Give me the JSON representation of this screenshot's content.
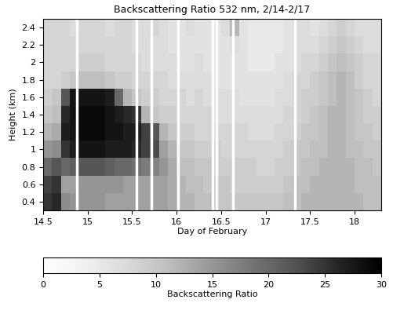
{
  "chart_data": {
    "type": "heatmap",
    "title": "Backscattering Ratio 532 nm, 2/14-2/17",
    "x_label": "Day of February",
    "y_label": "Height (km)",
    "color": "Greys",
    "x": [
      14.5,
      14.6,
      14.7,
      14.8,
      14.9,
      15.0,
      15.1,
      15.2,
      15.3,
      15.4,
      15.5,
      15.6,
      15.7,
      15.8,
      15.9,
      16.0,
      16.1,
      16.2,
      16.3,
      16.4,
      16.5,
      16.6,
      16.7,
      16.8,
      16.9,
      17.0,
      17.1,
      17.2,
      17.3,
      17.4,
      17.5,
      17.6,
      17.7,
      17.8,
      17.9,
      18.0,
      18.1,
      18.2,
      18.3
    ],
    "y": [
      0.3,
      0.5,
      0.7,
      0.9,
      1.1,
      1.3,
      1.5,
      1.7,
      1.9,
      2.1,
      2.3,
      2.5
    ],
    "cells": [
      [
        25,
        26,
        16,
        15,
        15,
        15,
        15,
        14,
        14,
        14,
        14,
        14,
        14,
        14,
        13,
        12,
        12,
        11,
        11,
        10,
        10,
        10,
        10,
        10,
        10,
        10,
        10,
        11,
        11,
        12,
        12,
        12,
        12,
        12,
        12,
        12,
        11,
        11
      ],
      [
        24,
        25,
        14,
        14,
        15,
        15,
        15,
        15,
        15,
        14,
        14,
        14,
        14,
        14,
        13,
        12,
        11,
        11,
        10,
        10,
        10,
        9,
        9,
        9,
        9,
        9,
        9,
        10,
        11,
        11,
        12,
        12,
        12,
        12,
        12,
        11,
        11,
        11
      ],
      [
        20,
        22,
        20,
        21,
        22,
        22,
        22,
        21,
        20,
        20,
        19,
        18,
        17,
        15,
        13,
        11,
        11,
        10,
        10,
        9,
        9,
        9,
        9,
        9,
        8,
        8,
        9,
        9,
        10,
        11,
        11,
        12,
        12,
        12,
        12,
        11,
        11,
        10
      ],
      [
        15,
        16,
        25,
        27,
        28,
        28,
        28,
        27,
        27,
        27,
        26,
        24,
        23,
        14,
        12,
        10,
        10,
        9,
        9,
        9,
        8,
        8,
        8,
        8,
        8,
        8,
        8,
        9,
        10,
        10,
        11,
        11,
        12,
        12,
        11,
        11,
        10,
        10
      ],
      [
        12,
        13,
        27,
        28,
        29,
        29,
        29,
        28,
        28,
        27,
        27,
        24,
        22,
        12,
        10,
        9,
        9,
        8,
        8,
        8,
        8,
        8,
        8,
        7,
        7,
        7,
        8,
        8,
        9,
        10,
        10,
        11,
        12,
        12,
        11,
        10,
        10,
        9
      ],
      [
        10,
        11,
        26,
        28,
        29,
        29,
        29,
        28,
        27,
        26,
        25,
        12,
        10,
        9,
        9,
        8,
        8,
        8,
        8,
        7,
        7,
        7,
        7,
        7,
        7,
        7,
        7,
        8,
        8,
        9,
        10,
        11,
        12,
        12,
        11,
        10,
        9,
        9
      ],
      [
        9,
        10,
        22,
        28,
        28,
        28,
        28,
        27,
        20,
        12,
        10,
        9,
        9,
        8,
        8,
        8,
        7,
        8,
        7,
        7,
        7,
        7,
        6,
        6,
        6,
        6,
        7,
        7,
        8,
        9,
        9,
        10,
        11,
        12,
        11,
        10,
        9,
        8
      ],
      [
        8,
        8,
        9,
        10,
        11,
        11,
        11,
        10,
        9,
        9,
        8,
        8,
        8,
        8,
        7,
        7,
        7,
        7,
        7,
        6,
        6,
        6,
        6,
        6,
        6,
        6,
        6,
        7,
        8,
        8,
        9,
        10,
        11,
        12,
        11,
        9,
        8,
        8
      ],
      [
        8,
        8,
        8,
        8,
        9,
        9,
        9,
        8,
        8,
        8,
        8,
        7,
        7,
        7,
        7,
        6,
        6,
        7,
        6,
        6,
        6,
        6,
        6,
        5,
        5,
        5,
        6,
        6,
        7,
        8,
        8,
        9,
        10,
        11,
        10,
        9,
        8,
        8
      ],
      [
        8,
        8,
        8,
        8,
        8,
        8,
        8,
        8,
        8,
        8,
        7,
        7,
        7,
        7,
        6,
        6,
        6,
        6,
        6,
        6,
        6,
        7,
        6,
        5,
        5,
        5,
        5,
        6,
        7,
        7,
        7,
        8,
        9,
        10,
        9,
        8,
        7,
        7
      ],
      [
        8,
        8,
        8,
        7,
        8,
        8,
        8,
        7,
        8,
        8,
        7,
        7,
        8,
        7,
        6,
        6,
        7,
        6,
        6,
        6,
        7,
        12,
        6,
        5,
        5,
        5,
        5,
        6,
        7,
        7,
        6,
        7,
        8,
        9,
        8,
        7,
        7,
        7
      ]
    ],
    "gaps": [
      14.88,
      15.55,
      15.72,
      16.02,
      16.4,
      16.45,
      16.63,
      17.33
    ],
    "xlim": [
      14.5,
      18.3
    ],
    "xticks": [
      14.5,
      15,
      15.5,
      16,
      16.5,
      17,
      17.5,
      18
    ],
    "ylim": [
      0.3,
      2.5
    ],
    "yticks": [
      0.4,
      0.6,
      0.8,
      1,
      1.2,
      1.4,
      1.6,
      1.8,
      2,
      2.2,
      2.4
    ],
    "colorbar": {
      "label": "Backscattering Ratio",
      "range": [
        0,
        30
      ],
      "ticks": [
        0,
        5,
        10,
        15,
        20,
        25,
        30
      ]
    }
  }
}
